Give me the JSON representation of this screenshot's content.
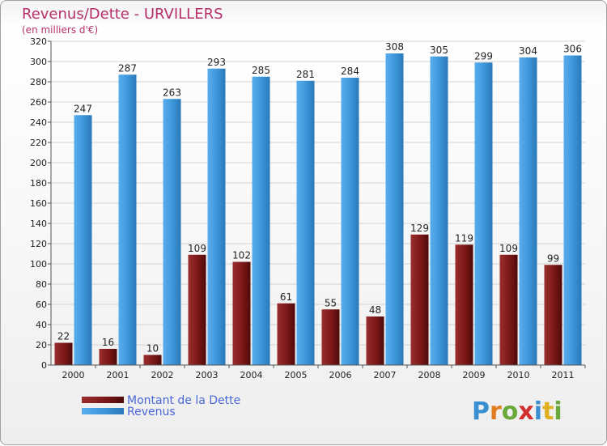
{
  "chart_data": {
    "type": "bar",
    "title": "Revenus/Dette - URVILLERS",
    "subtitle": "(en milliers d'€)",
    "categories": [
      "2000",
      "2001",
      "2002",
      "2003",
      "2004",
      "2005",
      "2006",
      "2007",
      "2008",
      "2009",
      "2010",
      "2011"
    ],
    "series": [
      {
        "name": "Montant de la Dette",
        "color": "#7a1c1c",
        "values": [
          22,
          16,
          10,
          109,
          102,
          61,
          55,
          48,
          129,
          119,
          109,
          99
        ]
      },
      {
        "name": "Revenus",
        "color": "#3c95d8",
        "values": [
          247,
          287,
          263,
          293,
          285,
          281,
          284,
          308,
          305,
          299,
          304,
          306
        ]
      }
    ],
    "ylim": [
      0,
      320
    ],
    "ystep": 20,
    "grid": true,
    "legend_position": "bottom-left"
  },
  "logo": {
    "letters": [
      "P",
      "r",
      "o",
      "x",
      "i",
      "t",
      "i"
    ],
    "colors": [
      "#3a8fd1",
      "#e07b20",
      "#69a83a",
      "#d12f2f",
      "#3a8fd1",
      "#e0b020",
      "#69a83a"
    ]
  }
}
